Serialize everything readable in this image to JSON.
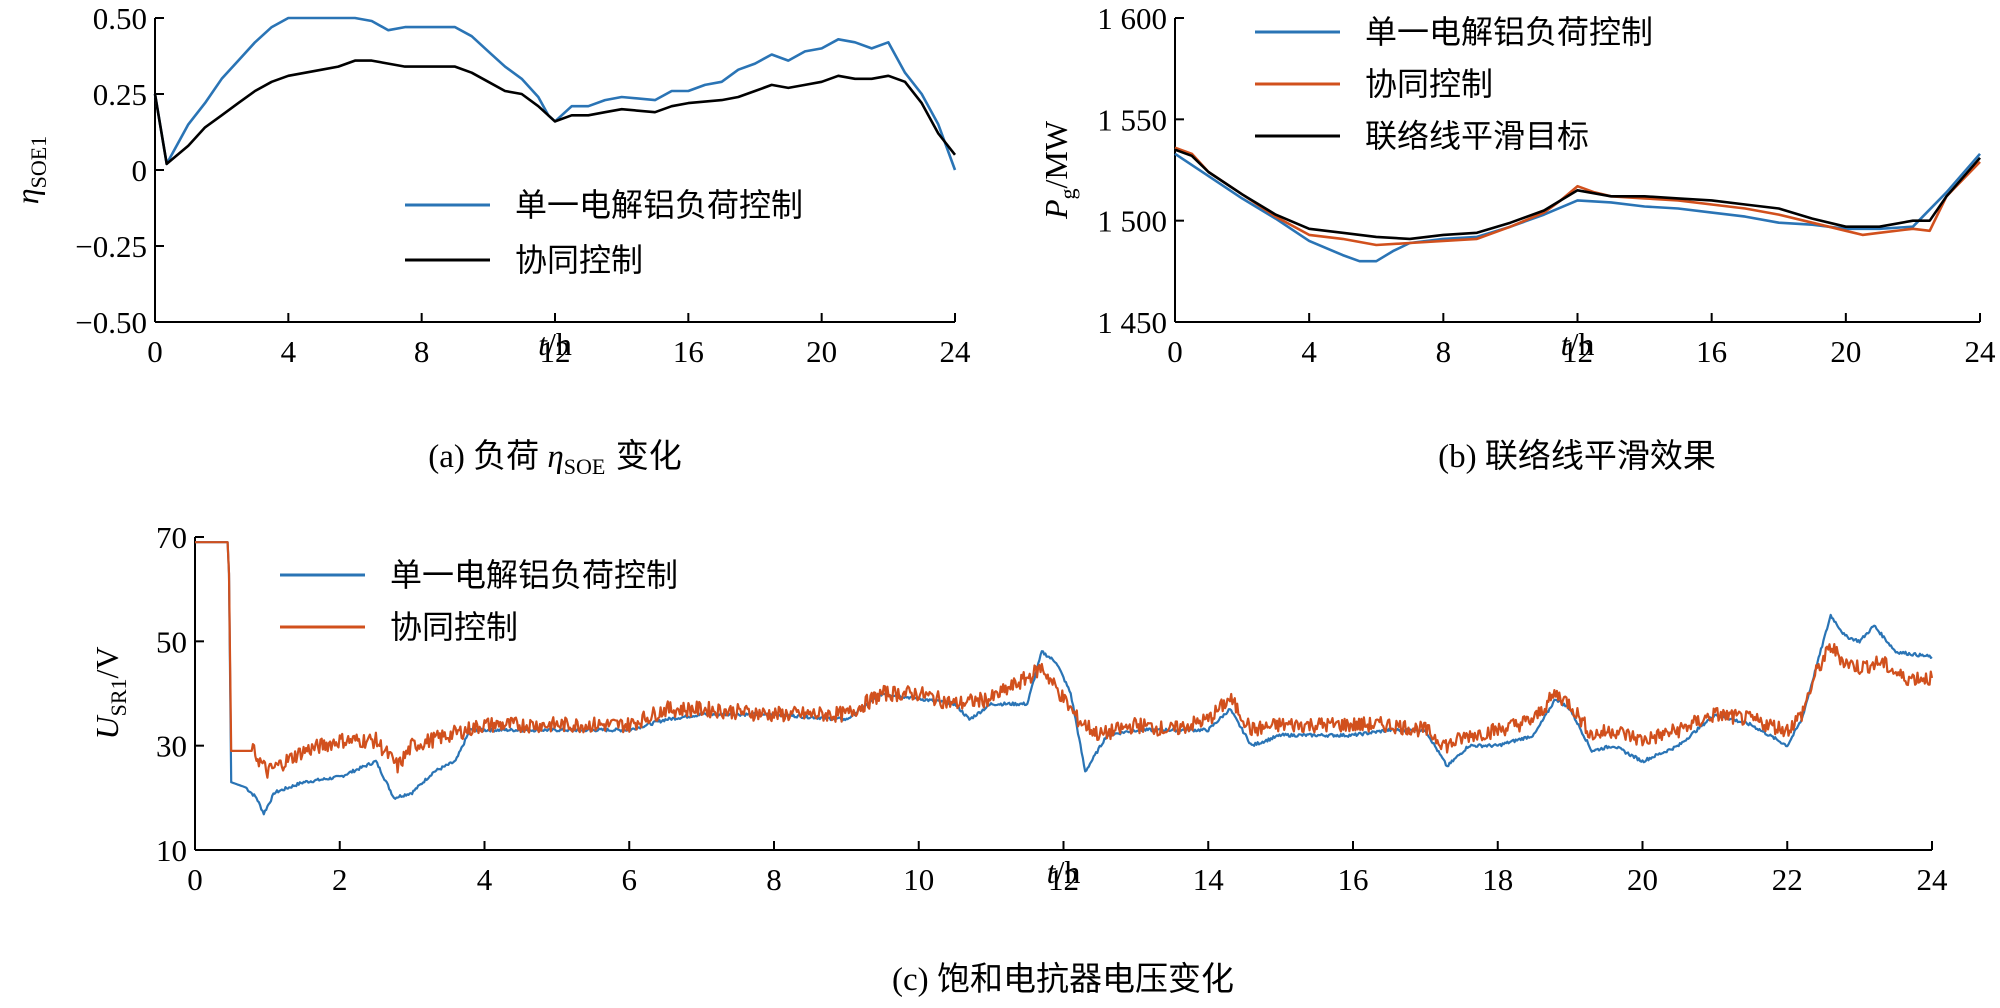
{
  "chart_data": [
    {
      "id": "a",
      "type": "line",
      "caption_prefix": "(a)",
      "caption_text": "负荷",
      "caption_symbol": "η",
      "caption_symbol_sub": "SOE",
      "caption_suffix": "变化",
      "ylabel_symbol": "η",
      "ylabel_sub": "SOE1",
      "xlabel_var": "t",
      "xlabel_unit": "/h",
      "xlim": [
        0,
        24
      ],
      "ylim": [
        -0.5,
        0.5
      ],
      "xticks": [
        0,
        4,
        8,
        12,
        16,
        20,
        24
      ],
      "yticks": [
        0.5,
        0.25,
        0,
        -0.25,
        -0.5
      ],
      "ytick_labels": [
        "0.50",
        "0.25",
        "0",
        "−0.25",
        "−0.50"
      ],
      "legend_position": "lower-center",
      "series": [
        {
          "name": "单一电解铝负荷控制",
          "color": "#2a74b5",
          "x": [
            0,
            0.35,
            1,
            1.5,
            2,
            2.5,
            3,
            3.5,
            4,
            5,
            6,
            6.5,
            7,
            7.5,
            8,
            9,
            9.5,
            10,
            10.5,
            11,
            11.5,
            11.8,
            12,
            12.5,
            13,
            13.5,
            14,
            15,
            15.5,
            16,
            16.5,
            17,
            17.5,
            18,
            18.5,
            19,
            19.5,
            20,
            20.5,
            21,
            21.5,
            22,
            22.5,
            23,
            23.5,
            24
          ],
          "y": [
            0.25,
            0.02,
            0.15,
            0.22,
            0.3,
            0.36,
            0.42,
            0.47,
            0.5,
            0.5,
            0.5,
            0.49,
            0.46,
            0.47,
            0.47,
            0.47,
            0.44,
            0.39,
            0.34,
            0.3,
            0.24,
            0.18,
            0.16,
            0.21,
            0.21,
            0.23,
            0.24,
            0.23,
            0.26,
            0.26,
            0.28,
            0.29,
            0.33,
            0.35,
            0.38,
            0.36,
            0.39,
            0.4,
            0.43,
            0.42,
            0.4,
            0.42,
            0.32,
            0.25,
            0.15,
            0.0
          ]
        },
        {
          "name": "协同控制",
          "color": "#000000",
          "x": [
            0,
            0.35,
            1,
            1.5,
            2,
            2.5,
            3,
            3.5,
            4,
            5,
            5.5,
            6,
            6.5,
            7,
            7.5,
            8,
            9,
            9.5,
            10,
            10.5,
            11,
            11.5,
            12,
            12.5,
            13,
            13.5,
            14,
            15,
            15.5,
            16,
            17,
            17.5,
            18,
            18.5,
            19,
            19.5,
            20,
            20.5,
            21,
            21.5,
            22,
            22.5,
            23,
            23.5,
            24
          ],
          "y": [
            0.25,
            0.02,
            0.08,
            0.14,
            0.18,
            0.22,
            0.26,
            0.29,
            0.31,
            0.33,
            0.34,
            0.36,
            0.36,
            0.35,
            0.34,
            0.34,
            0.34,
            0.32,
            0.29,
            0.26,
            0.25,
            0.21,
            0.16,
            0.18,
            0.18,
            0.19,
            0.2,
            0.19,
            0.21,
            0.22,
            0.23,
            0.24,
            0.26,
            0.28,
            0.27,
            0.28,
            0.29,
            0.31,
            0.3,
            0.3,
            0.31,
            0.29,
            0.22,
            0.12,
            0.05
          ]
        }
      ]
    },
    {
      "id": "b",
      "type": "line",
      "caption_prefix": "(b)",
      "caption_text": "联络线平滑效果",
      "ylabel_symbol": "P",
      "ylabel_sub": "g",
      "ylabel_unit": "/MW",
      "xlabel_var": "t",
      "xlabel_unit": "/h",
      "xlim": [
        0,
        24
      ],
      "ylim": [
        1450,
        1600
      ],
      "xticks": [
        0,
        4,
        8,
        12,
        16,
        20,
        24
      ],
      "yticks": [
        1600,
        1550,
        1500,
        1450
      ],
      "ytick_labels": [
        "1 600",
        "1 550",
        "1 500",
        "1 450"
      ],
      "legend_position": "upper-center",
      "series": [
        {
          "name": "单一电解铝负荷控制",
          "color": "#2a74b5",
          "x": [
            0,
            1,
            2,
            3,
            4,
            5,
            5.5,
            6,
            6.5,
            7,
            8,
            9,
            10,
            11,
            12,
            13,
            14,
            15,
            16,
            17,
            18,
            19,
            20,
            21,
            22,
            23,
            24
          ],
          "y": [
            1533,
            1522,
            1511,
            1501,
            1490,
            1483,
            1480,
            1480,
            1485,
            1489,
            1491,
            1492,
            1497,
            1503,
            1510,
            1509,
            1507,
            1506,
            1504,
            1502,
            1499,
            1498,
            1496,
            1496,
            1497,
            1514,
            1533
          ]
        },
        {
          "name": "协同控制",
          "color": "#d1501d",
          "x": [
            0,
            0.5,
            1,
            2,
            3,
            4,
            5,
            6,
            7,
            8,
            9,
            10,
            11,
            11.5,
            12,
            12.5,
            13,
            14,
            15,
            16,
            17,
            18,
            19,
            20,
            20.5,
            21,
            22,
            22.5,
            23,
            24
          ],
          "y": [
            1536,
            1533,
            1524,
            1513,
            1502,
            1493,
            1491,
            1488,
            1489,
            1490,
            1491,
            1497,
            1504,
            1510,
            1517,
            1514,
            1512,
            1511,
            1510,
            1508,
            1506,
            1503,
            1499,
            1495,
            1493,
            1494,
            1496,
            1495,
            1512,
            1529
          ]
        },
        {
          "name": "联络线平滑目标",
          "color": "#000000",
          "x": [
            0,
            0.5,
            1,
            2,
            3,
            4,
            5,
            6,
            7,
            8,
            9,
            10,
            11,
            11.5,
            12,
            13,
            14,
            15,
            16,
            17,
            18,
            19,
            20,
            21,
            22,
            22.5,
            23,
            24
          ],
          "y": [
            1535,
            1532,
            1524,
            1513,
            1503,
            1496,
            1494,
            1492,
            1491,
            1493,
            1494,
            1499,
            1505,
            1510,
            1515,
            1512,
            1512,
            1511,
            1510,
            1508,
            1506,
            1501,
            1497,
            1497,
            1500,
            1500,
            1512,
            1531
          ]
        }
      ]
    },
    {
      "id": "c",
      "type": "line",
      "caption_prefix": "(c)",
      "caption_text": "饱和电抗器电压变化",
      "ylabel_symbol": "U",
      "ylabel_sub": "SR1",
      "ylabel_unit": "/V",
      "xlabel_var": "t",
      "xlabel_unit": "/h",
      "xlim": [
        0,
        24
      ],
      "ylim": [
        10,
        70
      ],
      "xticks": [
        0,
        2,
        4,
        6,
        8,
        10,
        12,
        14,
        16,
        18,
        20,
        22,
        24
      ],
      "yticks": [
        70,
        50,
        30,
        10
      ],
      "ytick_labels": [
        "70",
        "50",
        "30",
        "10"
      ],
      "legend_position": "upper-left",
      "series": [
        {
          "name": "单一电解铝负荷控制",
          "color": "#2a74b5",
          "x": [
            0,
            0.45,
            0.47,
            0.5,
            0.7,
            0.85,
            0.95,
            1.1,
            1.5,
            2.0,
            2.5,
            2.75,
            3.0,
            3.3,
            3.6,
            3.8,
            4.0,
            5.0,
            6.0,
            6.5,
            7.0,
            8.0,
            9.0,
            9.5,
            10.0,
            10.5,
            10.7,
            11.0,
            11.5,
            11.7,
            11.9,
            12.1,
            12.3,
            12.6,
            13.0,
            13.5,
            14.0,
            14.3,
            14.6,
            15.0,
            15.5,
            16.0,
            16.5,
            17.0,
            17.3,
            17.6,
            18.0,
            18.5,
            18.8,
            19.0,
            19.3,
            19.6,
            20.0,
            20.5,
            21.0,
            21.5,
            22.0,
            22.2,
            22.4,
            22.6,
            22.8,
            23.0,
            23.2,
            23.5,
            24.0
          ],
          "y": [
            69,
            69,
            63,
            23,
            22,
            20,
            17,
            21,
            23,
            24,
            27,
            20,
            21,
            25,
            27,
            33,
            33,
            33,
            33,
            35,
            36,
            36,
            35,
            40,
            39,
            38,
            35,
            38,
            38,
            48,
            46,
            40,
            25,
            32,
            33,
            33,
            33,
            37,
            30,
            32,
            32,
            32,
            33,
            33,
            26,
            30,
            30,
            32,
            39,
            37,
            29,
            30,
            27,
            30,
            36,
            34,
            30,
            35,
            45,
            55,
            51,
            50,
            53,
            48,
            47
          ]
        },
        {
          "name": "协同控制",
          "color": "#d1501d",
          "x": [
            0,
            0.45,
            0.47,
            0.5,
            0.8,
            1.0,
            1.5,
            2.0,
            2.5,
            2.8,
            3.0,
            3.5,
            4.0,
            5.0,
            6.0,
            6.5,
            7.0,
            8.0,
            9.0,
            9.5,
            10.0,
            10.5,
            11.0,
            11.5,
            11.7,
            11.9,
            12.2,
            12.5,
            13.0,
            13.5,
            14.0,
            14.3,
            14.6,
            15.0,
            15.5,
            16.0,
            16.5,
            17.0,
            17.3,
            17.6,
            18.0,
            18.5,
            18.8,
            19.0,
            19.3,
            19.6,
            20.0,
            20.5,
            21.0,
            21.5,
            22.0,
            22.2,
            22.4,
            22.6,
            22.8,
            23.0,
            23.3,
            23.6,
            24.0
          ],
          "y": [
            69,
            69,
            63,
            29,
            29,
            25,
            29,
            31,
            31,
            26,
            30,
            32,
            34,
            34,
            34,
            37,
            37,
            36,
            36,
            40,
            40,
            38,
            39,
            43,
            45,
            41,
            35,
            32,
            34,
            33,
            35,
            39,
            33,
            34,
            34,
            34,
            34,
            33,
            30,
            32,
            33,
            35,
            40,
            38,
            32,
            33,
            31,
            33,
            36,
            35,
            33,
            36,
            44,
            49,
            46,
            45,
            46,
            43,
            43
          ]
        }
      ]
    }
  ]
}
